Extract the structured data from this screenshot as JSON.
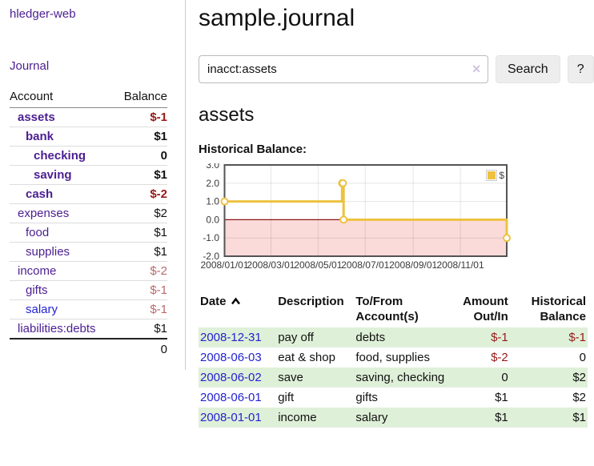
{
  "sidebar": {
    "brand": "hledger-web",
    "nav_journal": "Journal",
    "accounts_table": {
      "col_account": "Account",
      "col_balance": "Balance",
      "rows": [
        {
          "name": "assets",
          "depth": 1,
          "bold": true,
          "balance": "$-1",
          "balance_tone": "neg-strong",
          "link_tone": "purple"
        },
        {
          "name": "bank",
          "depth": 2,
          "bold": true,
          "balance": "$1",
          "balance_tone": "normal",
          "link_tone": "purple"
        },
        {
          "name": "checking",
          "depth": 3,
          "bold": true,
          "balance": "0",
          "balance_tone": "normal",
          "link_tone": "purple"
        },
        {
          "name": "saving",
          "depth": 3,
          "bold": true,
          "balance": "$1",
          "balance_tone": "normal",
          "link_tone": "purple"
        },
        {
          "name": "cash",
          "depth": 2,
          "bold": true,
          "balance": "$-2",
          "balance_tone": "neg-strong",
          "link_tone": "purple"
        },
        {
          "name": "expenses",
          "depth": 1,
          "bold": false,
          "balance": "$2",
          "balance_tone": "normal",
          "link_tone": "purple"
        },
        {
          "name": "food",
          "depth": 2,
          "bold": false,
          "balance": "$1",
          "balance_tone": "normal",
          "link_tone": "purple"
        },
        {
          "name": "supplies",
          "depth": 2,
          "bold": false,
          "balance": "$1",
          "balance_tone": "normal",
          "link_tone": "purple"
        },
        {
          "name": "income",
          "depth": 1,
          "bold": false,
          "balance": "$-2",
          "balance_tone": "neg-soft",
          "link_tone": "purple"
        },
        {
          "name": "gifts",
          "depth": 2,
          "bold": false,
          "balance": "$-1",
          "balance_tone": "neg-soft",
          "link_tone": "purple"
        },
        {
          "name": "salary",
          "depth": 2,
          "bold": false,
          "balance": "$-1",
          "balance_tone": "neg-soft",
          "link_tone": "blue"
        },
        {
          "name": "liabilities:debts",
          "depth": 1,
          "bold": false,
          "balance": "$1",
          "balance_tone": "normal",
          "link_tone": "purple"
        }
      ],
      "total": "0"
    }
  },
  "main": {
    "title": "sample.journal",
    "search": {
      "value": "inacct:assets",
      "clear_icon": "✕",
      "search_button": "Search",
      "help_button": "?"
    },
    "account_heading": "assets",
    "chart_title": "Historical Balance:"
  },
  "chart_data": {
    "type": "line",
    "style": "step",
    "series": [
      {
        "name": "$",
        "color": "#edc240",
        "points": [
          [
            "2008-01-01",
            1
          ],
          [
            "2008-06-01",
            2
          ],
          [
            "2008-06-02",
            2
          ],
          [
            "2008-06-03",
            0
          ],
          [
            "2008-12-31",
            -1
          ]
        ]
      }
    ],
    "x_domain": [
      "2008-01-01",
      "2008-12-31"
    ],
    "x_ticks": [
      {
        "date": "2008-01-01",
        "label": "2008/01/01"
      },
      {
        "date": "2008-03-01",
        "label": "2008/03/01"
      },
      {
        "date": "2008-05-01",
        "label": "2008/05/01"
      },
      {
        "date": "2008-07-01",
        "label": "2008/07/01"
      },
      {
        "date": "2008-09-01",
        "label": "2008/09/01"
      },
      {
        "date": "2008-11-01",
        "label": "2008/11/01"
      }
    ],
    "y_ticks": [
      {
        "v": 3,
        "label": "3.0"
      },
      {
        "v": 2,
        "label": "2.0"
      },
      {
        "v": 1,
        "label": "1.0"
      },
      {
        "v": 0,
        "label": "0.0"
      },
      {
        "v": -1,
        "label": "-1.0"
      },
      {
        "v": -2,
        "label": "-2.0"
      }
    ],
    "ylim": [
      -2,
      3
    ],
    "grid": true,
    "negative_region_color": "#fbdada",
    "zero_line_color": "#8b1515",
    "border_color": "#545454",
    "legend_position": "top-right"
  },
  "register": {
    "headers": {
      "date": "Date",
      "sort_icon": "chevron-up",
      "description": "Description",
      "accounts": "To/From Account(s)",
      "amount": "Amount Out/In",
      "balance": "Historical Balance"
    },
    "rows": [
      {
        "date": "2008-12-31",
        "description": "pay off",
        "accounts": "debts",
        "amount": "$-1",
        "amount_tone": "neg",
        "balance": "$-1",
        "balance_tone": "neg"
      },
      {
        "date": "2008-06-03",
        "description": "eat & shop",
        "accounts": "food, supplies",
        "amount": "$-2",
        "amount_tone": "neg",
        "balance": "0",
        "balance_tone": "normal"
      },
      {
        "date": "2008-06-02",
        "description": "save",
        "accounts": "saving, checking",
        "amount": "0",
        "amount_tone": "normal",
        "balance": "$2",
        "balance_tone": "normal"
      },
      {
        "date": "2008-06-01",
        "description": "gift",
        "accounts": "gifts",
        "amount": "$1",
        "amount_tone": "normal",
        "balance": "$2",
        "balance_tone": "normal"
      },
      {
        "date": "2008-01-01",
        "description": "income",
        "accounts": "salary",
        "amount": "$1",
        "amount_tone": "normal",
        "balance": "$1",
        "balance_tone": "normal"
      }
    ]
  },
  "colors": {
    "link_purple": "#4b1e91",
    "link_blue": "#2323d2",
    "neg_strong": "#961919",
    "neg_soft": "#b96969",
    "stripe_green": "#dff0d8",
    "series_yellow": "#edc240"
  }
}
